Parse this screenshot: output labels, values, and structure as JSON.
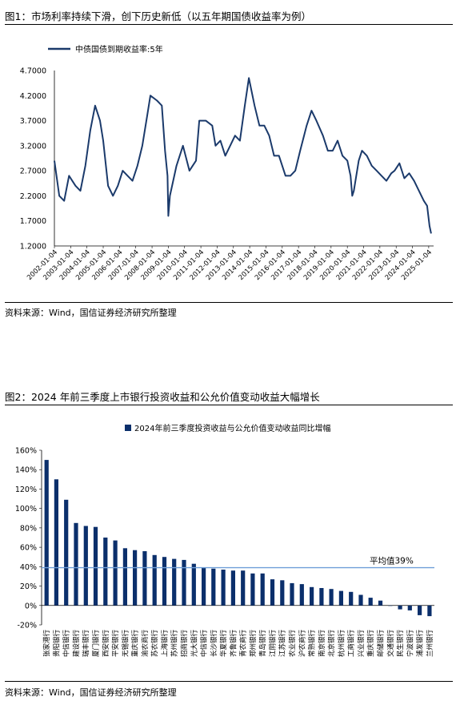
{
  "colors": {
    "series": "#1b3a6b",
    "bars": "#0b2f6b",
    "avg_line": "#6f9fd8",
    "grid": "#d9d9d9"
  },
  "fig1": {
    "title": "图1：市场利率持续下滑，创下历史新低（以五年期国债收益率为例）",
    "source": "资料来源：Wind，国信证券经济研究所整理"
  },
  "fig2": {
    "title": "图2：2024 年前三季度上市银行投资收益和公允价值变动收益大幅增长",
    "source": "资料来源：Wind，国信证券经济研究所整理",
    "avg_label": "平均值39%"
  },
  "chart_data": [
    {
      "type": "line",
      "legend": "中债国债到期收益率:5年",
      "legend_position": "top-center",
      "grid": false,
      "ylim": [
        1.2,
        4.7
      ],
      "yticks": [
        "4.7000",
        "4.2000",
        "3.7000",
        "3.2000",
        "2.7000",
        "2.2000",
        "1.7000",
        "1.2000"
      ],
      "xlabels": [
        "2002-01-04",
        "2003-01-04",
        "2004-01-04",
        "2005-01-04",
        "2006-01-04",
        "2007-01-04",
        "2008-01-04",
        "2009-01-04",
        "2010-01-04",
        "2011-01-04",
        "2012-01-04",
        "2013-01-04",
        "2014-01-04",
        "2015-01-04",
        "2016-01-04",
        "2017-01-04",
        "2018-01-04",
        "2019-01-04",
        "2020-01-04",
        "2021-01-04",
        "2022-01-04",
        "2023-01-04",
        "2024-01-04",
        "2025-01-04"
      ],
      "x": [
        2002.0,
        2002.3,
        2002.6,
        2002.9,
        2003.3,
        2003.6,
        2003.9,
        2004.2,
        2004.5,
        2004.8,
        2005.0,
        2005.3,
        2005.6,
        2005.9,
        2006.2,
        2006.5,
        2006.8,
        2007.1,
        2007.4,
        2007.7,
        2007.9,
        2008.3,
        2008.6,
        2008.8,
        2008.95,
        2009.0,
        2009.1,
        2009.5,
        2009.9,
        2010.3,
        2010.7,
        2010.9,
        2011.3,
        2011.7,
        2011.9,
        2012.2,
        2012.5,
        2012.8,
        2013.1,
        2013.4,
        2013.7,
        2013.95,
        2014.3,
        2014.6,
        2014.9,
        2015.2,
        2015.5,
        2015.8,
        2016.2,
        2016.5,
        2016.8,
        2017.1,
        2017.5,
        2017.8,
        2018.1,
        2018.5,
        2018.8,
        2019.1,
        2019.4,
        2019.7,
        2020.0,
        2020.2,
        2020.3,
        2020.4,
        2020.7,
        2020.9,
        2021.2,
        2021.5,
        2021.8,
        2022.1,
        2022.4,
        2022.7,
        2022.9,
        2023.2,
        2023.5,
        2023.8,
        2024.1,
        2024.4,
        2024.7,
        2024.9,
        2025.05,
        2025.15
      ],
      "y": [
        2.9,
        2.2,
        2.1,
        2.6,
        2.4,
        2.3,
        2.8,
        3.5,
        4.0,
        3.7,
        3.3,
        2.4,
        2.2,
        2.4,
        2.7,
        2.6,
        2.5,
        2.8,
        3.2,
        3.8,
        4.2,
        4.1,
        4.0,
        3.1,
        2.6,
        1.8,
        2.2,
        2.8,
        3.2,
        2.7,
        2.9,
        3.7,
        3.7,
        3.6,
        3.2,
        3.3,
        3.0,
        3.2,
        3.4,
        3.3,
        4.0,
        4.55,
        4.0,
        3.6,
        3.6,
        3.4,
        3.0,
        3.0,
        2.6,
        2.6,
        2.7,
        3.1,
        3.6,
        3.9,
        3.7,
        3.4,
        3.1,
        3.1,
        3.3,
        3.0,
        2.9,
        2.6,
        2.2,
        2.3,
        2.9,
        3.1,
        3.0,
        2.8,
        2.7,
        2.6,
        2.5,
        2.65,
        2.7,
        2.85,
        2.55,
        2.65,
        2.5,
        2.3,
        2.1,
        2.0,
        1.6,
        1.45
      ],
      "series": [
        {
          "name": "中债国债到期收益率:5年"
        }
      ]
    },
    {
      "type": "bar",
      "legend": "2024年前三季度投资收益与公允价值变动收益同比增幅",
      "legend_position": "top-center",
      "grid": false,
      "ylim": [
        -20,
        160
      ],
      "yticks": [
        "160%",
        "140%",
        "120%",
        "100%",
        "80%",
        "60%",
        "40%",
        "20%",
        "0%",
        "-20%"
      ],
      "average": 39,
      "categories": [
        "张家港行",
        "贵阳银行",
        "中信银行",
        "建设银行",
        "瑞丰银行",
        "厦门银行",
        "西安银行",
        "平安银行",
        "无锡银行",
        "重庆银行",
        "渝农商行",
        "苏农银行",
        "上海银行",
        "苏州银行",
        "招商银行",
        "光大银行",
        "中信银行",
        "长沙银行",
        "华夏银行",
        "齐鲁银行",
        "青农商行",
        "郑州银行",
        "青岛银行",
        "江阴银行",
        "江苏银行",
        "农业银行",
        "沪农商行",
        "常熟银行",
        "南京银行",
        "北京银行",
        "杭州银行",
        "工商银行",
        "兴业银行",
        "重庆银行",
        "邮储银行",
        "交通银行",
        "民生银行",
        "宁波银行",
        "浦发银行",
        "兰州银行"
      ],
      "values": [
        150,
        130,
        109,
        85,
        82,
        81,
        70,
        67,
        59,
        57,
        56,
        52,
        50,
        48,
        47,
        43,
        39,
        38,
        37,
        36,
        36,
        33,
        33,
        27,
        26,
        23,
        22,
        19,
        18,
        17,
        15,
        14,
        11,
        8,
        5,
        0,
        -4,
        -5,
        -10,
        -11
      ]
    }
  ]
}
